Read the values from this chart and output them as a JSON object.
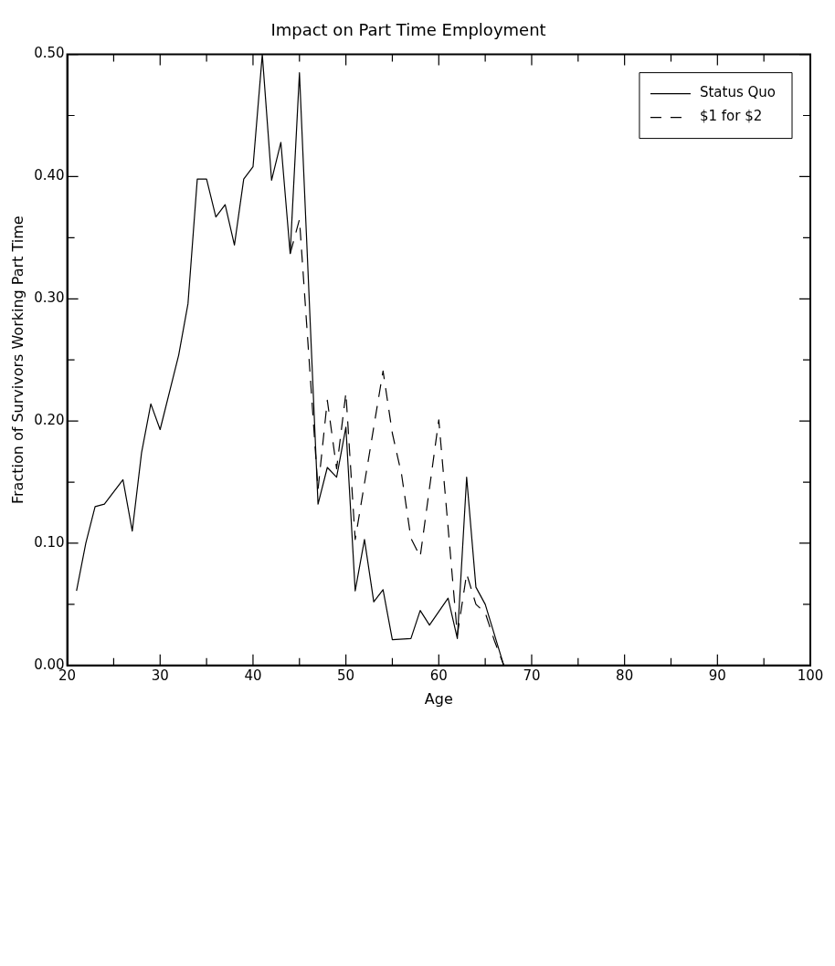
{
  "chart_data": {
    "type": "line",
    "title": "Impact on Part Time Employment",
    "xlabel": "Age",
    "ylabel": "Fraction of Survivors Working Part Time",
    "xlim": [
      20,
      100
    ],
    "xticks": [
      20,
      {
        "value": 25,
        "label": null
      },
      30,
      {
        "value": 35,
        "label": null
      },
      40,
      {
        "value": 45,
        "label": null
      },
      50,
      {
        "value": 55,
        "label": null
      },
      60,
      {
        "value": 65,
        "label": null
      },
      70,
      {
        "value": 75,
        "label": null
      },
      80,
      {
        "value": 85,
        "label": null
      },
      90,
      {
        "value": 95,
        "label": null
      },
      100
    ],
    "ylim": [
      0,
      0.5
    ],
    "yticks": [
      {
        "value": 0,
        "label": "0.00"
      },
      {
        "value": 0.05,
        "label": null
      },
      {
        "value": 0.1,
        "label": "0.10"
      },
      {
        "value": 0.15,
        "label": null
      },
      {
        "value": 0.2,
        "label": "0.20"
      },
      {
        "value": 0.25,
        "label": null
      },
      {
        "value": 0.3,
        "label": "0.30"
      },
      {
        "value": 0.35,
        "label": null
      },
      {
        "value": 0.4,
        "label": "0.40"
      },
      {
        "value": 0.45,
        "label": null
      },
      {
        "value": 0.5,
        "label": "0.50"
      }
    ],
    "grid": false,
    "legend": "top right",
    "marker": "none",
    "series": [
      {
        "name": "Status Quo",
        "color": "#000000",
        "line_style": "solid",
        "x": [
          21,
          22,
          23,
          24,
          26,
          27,
          28,
          29,
          30,
          32,
          33,
          34,
          35,
          36,
          37,
          38,
          39,
          40,
          41,
          42,
          43,
          44,
          45,
          47,
          48,
          49,
          50,
          51,
          52,
          53,
          54,
          55,
          57,
          58,
          59,
          61,
          62,
          63,
          64,
          65,
          67
        ],
        "values": [
          0.061,
          0.1,
          0.13,
          0.132,
          0.152,
          0.11,
          0.174,
          0.214,
          0.193,
          0.254,
          0.296,
          0.398,
          0.398,
          0.367,
          0.377,
          0.344,
          0.398,
          0.408,
          0.5,
          0.397,
          0.428,
          0.337,
          0.485,
          0.132,
          0.162,
          0.154,
          0.195,
          0.061,
          0.103,
          0.052,
          0.062,
          0.021,
          0.022,
          0.045,
          0.033,
          0.055,
          0.022,
          0.154,
          0.064,
          0.05,
          0.0
        ]
      },
      {
        "name": "$1 for $2",
        "color": "#000000",
        "line_style": "dashed",
        "x": [
          44,
          45,
          47,
          48,
          49,
          50,
          51,
          54,
          55,
          56,
          57,
          58,
          60,
          62,
          63,
          64,
          65,
          66,
          67
        ],
        "values": [
          0.337,
          0.365,
          0.144,
          0.217,
          0.161,
          0.223,
          0.103,
          0.241,
          0.19,
          0.156,
          0.104,
          0.089,
          0.201,
          0.025,
          0.075,
          0.05,
          0.043,
          0.02,
          0.0
        ]
      }
    ]
  }
}
